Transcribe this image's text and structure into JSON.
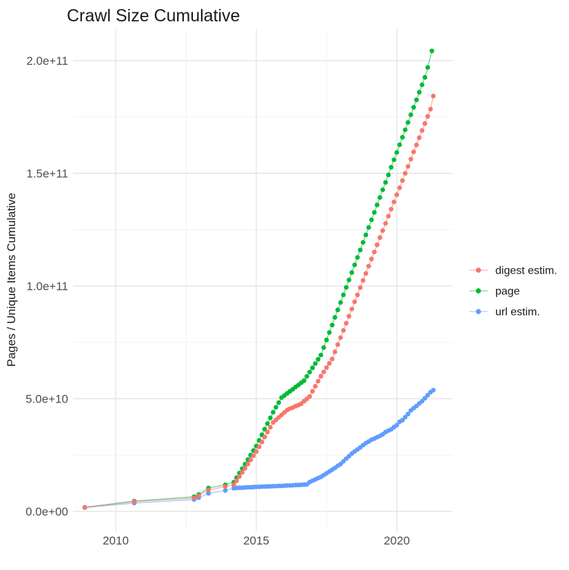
{
  "title": "Crawl Size Cumulative",
  "colors": {
    "digest": "#F8766D",
    "page": "#00BA38",
    "url": "#619CFF",
    "grid_major": "#E5E5E5",
    "grid_minor": "#F3F3F3",
    "axis_text": "#4D4D4D",
    "title_text": "#1A1A1A"
  },
  "axes": {
    "y_title": "Pages / Unique Items Cumulative",
    "y_ticks": [
      {
        "value": 0,
        "label": "0.0e+00"
      },
      {
        "value": 50,
        "label": "5.0e+10"
      },
      {
        "value": 100,
        "label": "1.0e+11"
      },
      {
        "value": 150,
        "label": "1.5e+11"
      },
      {
        "value": 200,
        "label": "2.0e+11"
      }
    ],
    "y_minor": [
      25,
      75,
      125,
      175
    ],
    "x_ticks": [
      {
        "value": 2010,
        "label": "2010"
      },
      {
        "value": 2015,
        "label": "2015"
      },
      {
        "value": 2020,
        "label": "2020"
      }
    ],
    "x_minor": [
      2012.5,
      2017.5
    ]
  },
  "legend": {
    "entries": [
      {
        "key": "digest",
        "label": "digest estim.",
        "color": "#F8766D"
      },
      {
        "key": "page",
        "label": "page",
        "color": "#00BA38"
      },
      {
        "key": "url",
        "label": "url estim.",
        "color": "#619CFF"
      }
    ]
  },
  "chart_data": {
    "type": "scatter",
    "title": "Crawl Size Cumulative",
    "xlabel": "",
    "ylabel": "Pages / Unique Items Cumulative",
    "xlim": [
      2008.5,
      2022.0
    ],
    "ylim_billions": [
      -9,
      214
    ],
    "grid": true,
    "legend_position": "right",
    "y_value_scale": 1000000000.0,
    "note": "point values are cumulative counts in billions (1e9); axis shows scientific notation",
    "series": [
      {
        "key": "digest",
        "name": "digest estim.",
        "color": "#F8766D",
        "points": [
          [
            2008.9,
            1.8
          ],
          [
            2010.66,
            4.3
          ],
          [
            2012.79,
            6.0
          ],
          [
            2012.95,
            7.0
          ],
          [
            2013.3,
            9.5
          ],
          [
            2013.9,
            11.0
          ],
          [
            2014.2,
            11.8
          ],
          [
            2014.3,
            13.6
          ],
          [
            2014.4,
            15.5
          ],
          [
            2014.5,
            17.3
          ],
          [
            2014.6,
            19.1
          ],
          [
            2014.7,
            21.0
          ],
          [
            2014.8,
            22.8
          ],
          [
            2014.9,
            24.7
          ],
          [
            2015.0,
            26.5
          ],
          [
            2015.1,
            28.7
          ],
          [
            2015.2,
            30.8
          ],
          [
            2015.3,
            33.0
          ],
          [
            2015.4,
            35.2
          ],
          [
            2015.5,
            37.3
          ],
          [
            2015.6,
            39.5
          ],
          [
            2015.7,
            40.6
          ],
          [
            2015.8,
            41.7
          ],
          [
            2015.9,
            42.8
          ],
          [
            2016.0,
            43.9
          ],
          [
            2016.1,
            45.0
          ],
          [
            2016.2,
            45.6
          ],
          [
            2016.3,
            46.1
          ],
          [
            2016.4,
            46.7
          ],
          [
            2016.5,
            47.2
          ],
          [
            2016.6,
            47.8
          ],
          [
            2016.7,
            48.9
          ],
          [
            2016.8,
            49.9
          ],
          [
            2016.9,
            51.0
          ],
          [
            2017.0,
            53.3
          ],
          [
            2017.1,
            55.5
          ],
          [
            2017.2,
            57.8
          ],
          [
            2017.3,
            60.0
          ],
          [
            2017.4,
            61.9
          ],
          [
            2017.5,
            63.8
          ],
          [
            2017.6,
            65.7
          ],
          [
            2017.7,
            67.6
          ],
          [
            2017.8,
            70.8
          ],
          [
            2017.9,
            74.0
          ],
          [
            2018.0,
            77.1
          ],
          [
            2018.1,
            80.3
          ],
          [
            2018.2,
            83.5
          ],
          [
            2018.3,
            86.6
          ],
          [
            2018.4,
            89.8
          ],
          [
            2018.5,
            93.0
          ],
          [
            2018.6,
            96.1
          ],
          [
            2018.7,
            99.3
          ],
          [
            2018.8,
            102.5
          ],
          [
            2018.9,
            105.6
          ],
          [
            2019.0,
            108.8
          ],
          [
            2019.1,
            112.0
          ],
          [
            2019.2,
            115.1
          ],
          [
            2019.3,
            118.3
          ],
          [
            2019.4,
            121.5
          ],
          [
            2019.5,
            124.6
          ],
          [
            2019.6,
            127.8
          ],
          [
            2019.7,
            131.0
          ],
          [
            2019.8,
            134.1
          ],
          [
            2019.9,
            137.3
          ],
          [
            2020.0,
            140.5
          ],
          [
            2020.1,
            143.6
          ],
          [
            2020.2,
            146.8
          ],
          [
            2020.3,
            150.0
          ],
          [
            2020.4,
            153.1
          ],
          [
            2020.5,
            156.3
          ],
          [
            2020.6,
            159.5
          ],
          [
            2020.7,
            162.6
          ],
          [
            2020.8,
            165.8
          ],
          [
            2020.9,
            169.0
          ],
          [
            2021.0,
            172.1
          ],
          [
            2021.1,
            175.3
          ],
          [
            2021.2,
            178.5
          ],
          [
            2021.3,
            184.3
          ]
        ]
      },
      {
        "key": "page",
        "name": "page",
        "color": "#00BA38",
        "points": [
          [
            2008.9,
            1.8
          ],
          [
            2010.66,
            4.6
          ],
          [
            2012.79,
            6.5
          ],
          [
            2012.95,
            7.5
          ],
          [
            2013.3,
            10.4
          ],
          [
            2013.9,
            11.8
          ],
          [
            2014.2,
            13.0
          ],
          [
            2014.3,
            15.0
          ],
          [
            2014.4,
            17.0
          ],
          [
            2014.5,
            19.0
          ],
          [
            2014.6,
            21.0
          ],
          [
            2014.7,
            23.0
          ],
          [
            2014.8,
            25.0
          ],
          [
            2014.9,
            27.0
          ],
          [
            2015.0,
            29.0
          ],
          [
            2015.1,
            31.5
          ],
          [
            2015.2,
            34.0
          ],
          [
            2015.3,
            36.5
          ],
          [
            2015.4,
            39.0
          ],
          [
            2015.5,
            41.5
          ],
          [
            2015.6,
            44.0
          ],
          [
            2015.7,
            46.2
          ],
          [
            2015.8,
            48.3
          ],
          [
            2015.9,
            50.5
          ],
          [
            2016.0,
            51.4
          ],
          [
            2016.1,
            52.4
          ],
          [
            2016.2,
            53.3
          ],
          [
            2016.3,
            54.2
          ],
          [
            2016.4,
            55.2
          ],
          [
            2016.5,
            56.1
          ],
          [
            2016.6,
            57.1
          ],
          [
            2016.7,
            58.0
          ],
          [
            2016.8,
            59.9
          ],
          [
            2016.9,
            61.8
          ],
          [
            2017.0,
            63.7
          ],
          [
            2017.1,
            65.6
          ],
          [
            2017.2,
            67.5
          ],
          [
            2017.3,
            69.4
          ],
          [
            2017.4,
            72.7
          ],
          [
            2017.5,
            76.1
          ],
          [
            2017.6,
            79.4
          ],
          [
            2017.7,
            82.7
          ],
          [
            2017.8,
            86.1
          ],
          [
            2017.9,
            89.4
          ],
          [
            2018.0,
            92.7
          ],
          [
            2018.1,
            96.1
          ],
          [
            2018.2,
            99.4
          ],
          [
            2018.3,
            102.7
          ],
          [
            2018.4,
            106.0
          ],
          [
            2018.5,
            109.4
          ],
          [
            2018.6,
            112.7
          ],
          [
            2018.7,
            116.0
          ],
          [
            2018.8,
            119.4
          ],
          [
            2018.9,
            122.7
          ],
          [
            2019.0,
            126.0
          ],
          [
            2019.1,
            129.4
          ],
          [
            2019.2,
            132.7
          ],
          [
            2019.3,
            136.0
          ],
          [
            2019.4,
            139.3
          ],
          [
            2019.5,
            142.7
          ],
          [
            2019.6,
            146.0
          ],
          [
            2019.7,
            149.3
          ],
          [
            2019.8,
            152.7
          ],
          [
            2019.9,
            156.0
          ],
          [
            2020.0,
            159.3
          ],
          [
            2020.1,
            162.7
          ],
          [
            2020.2,
            166.0
          ],
          [
            2020.3,
            169.3
          ],
          [
            2020.4,
            172.6
          ],
          [
            2020.5,
            176.0
          ],
          [
            2020.6,
            179.3
          ],
          [
            2020.7,
            182.6
          ],
          [
            2020.8,
            186.0
          ],
          [
            2020.9,
            189.3
          ],
          [
            2021.0,
            192.6
          ],
          [
            2021.1,
            197.0
          ],
          [
            2021.25,
            204.3
          ]
        ]
      },
      {
        "key": "url",
        "name": "url estim.",
        "color": "#619CFF",
        "points": [
          [
            2008.9,
            1.7
          ],
          [
            2010.66,
            3.7
          ],
          [
            2012.79,
            5.3
          ],
          [
            2012.95,
            6.1
          ],
          [
            2013.3,
            8.0
          ],
          [
            2013.9,
            9.3
          ],
          [
            2014.2,
            10.3
          ],
          [
            2014.3,
            10.4
          ],
          [
            2014.4,
            10.5
          ],
          [
            2014.5,
            10.5
          ],
          [
            2014.6,
            10.6
          ],
          [
            2014.7,
            10.7
          ],
          [
            2014.8,
            10.7
          ],
          [
            2014.9,
            10.8
          ],
          [
            2015.0,
            10.9
          ],
          [
            2015.1,
            10.9
          ],
          [
            2015.2,
            11.0
          ],
          [
            2015.3,
            11.0
          ],
          [
            2015.4,
            11.1
          ],
          [
            2015.5,
            11.1
          ],
          [
            2015.6,
            11.2
          ],
          [
            2015.7,
            11.2
          ],
          [
            2015.8,
            11.3
          ],
          [
            2015.9,
            11.3
          ],
          [
            2016.0,
            11.4
          ],
          [
            2016.1,
            11.5
          ],
          [
            2016.2,
            11.5
          ],
          [
            2016.3,
            11.6
          ],
          [
            2016.4,
            11.7
          ],
          [
            2016.5,
            11.7
          ],
          [
            2016.6,
            11.8
          ],
          [
            2016.7,
            11.9
          ],
          [
            2016.8,
            12.0
          ],
          [
            2016.9,
            13.0
          ],
          [
            2017.0,
            13.6
          ],
          [
            2017.1,
            14.2
          ],
          [
            2017.2,
            14.8
          ],
          [
            2017.3,
            15.3
          ],
          [
            2017.4,
            16.1
          ],
          [
            2017.5,
            16.9
          ],
          [
            2017.6,
            17.7
          ],
          [
            2017.7,
            18.5
          ],
          [
            2017.8,
            19.3
          ],
          [
            2017.9,
            20.2
          ],
          [
            2018.0,
            21.0
          ],
          [
            2018.1,
            22.2
          ],
          [
            2018.2,
            23.4
          ],
          [
            2018.3,
            24.5
          ],
          [
            2018.4,
            25.7
          ],
          [
            2018.5,
            26.6
          ],
          [
            2018.6,
            27.5
          ],
          [
            2018.7,
            28.4
          ],
          [
            2018.8,
            29.4
          ],
          [
            2018.9,
            30.3
          ],
          [
            2019.0,
            31.0
          ],
          [
            2019.1,
            31.8
          ],
          [
            2019.2,
            32.3
          ],
          [
            2019.3,
            32.9
          ],
          [
            2019.4,
            33.5
          ],
          [
            2019.5,
            34.2
          ],
          [
            2019.6,
            35.2
          ],
          [
            2019.7,
            35.8
          ],
          [
            2019.8,
            36.4
          ],
          [
            2019.9,
            37.4
          ],
          [
            2020.0,
            38.3
          ],
          [
            2020.1,
            39.8
          ],
          [
            2020.2,
            40.5
          ],
          [
            2020.3,
            41.8
          ],
          [
            2020.4,
            43.2
          ],
          [
            2020.5,
            44.8
          ],
          [
            2020.6,
            45.8
          ],
          [
            2020.7,
            46.8
          ],
          [
            2020.8,
            47.9
          ],
          [
            2020.9,
            48.9
          ],
          [
            2021.0,
            50.2
          ],
          [
            2021.1,
            51.6
          ],
          [
            2021.2,
            52.9
          ],
          [
            2021.3,
            53.8
          ]
        ]
      }
    ]
  }
}
